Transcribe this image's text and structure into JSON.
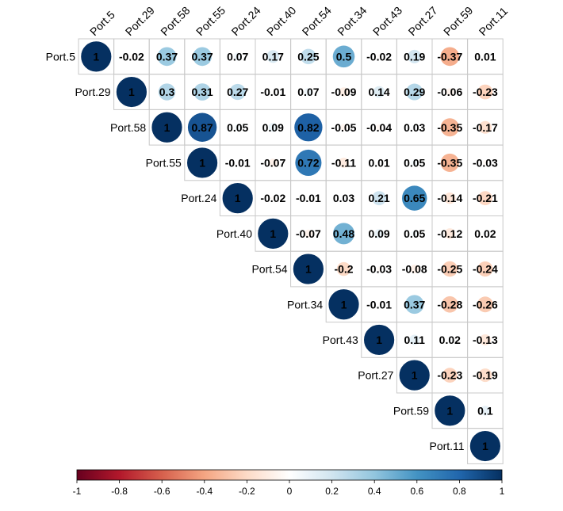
{
  "chart_data": {
    "type": "heatmap",
    "style": "upper-triangle correlation plot with circles",
    "variables": [
      "Port.5",
      "Port.29",
      "Port.58",
      "Port.55",
      "Port.24",
      "Port.40",
      "Port.54",
      "Port.34",
      "Port.43",
      "Port.27",
      "Port.59",
      "Port.11"
    ],
    "matrix_upper": [
      [
        1,
        -0.02,
        0.37,
        0.37,
        0.07,
        0.17,
        0.25,
        0.5,
        -0.02,
        0.19,
        -0.37,
        0.01
      ],
      [
        1,
        0.3,
        0.31,
        0.27,
        -0.01,
        0.07,
        -0.09,
        0.14,
        0.29,
        -0.06,
        -0.23
      ],
      [
        1,
        0.87,
        0.05,
        0.09,
        0.82,
        -0.05,
        -0.04,
        0.03,
        -0.35,
        -0.17
      ],
      [
        1,
        -0.01,
        -0.07,
        0.72,
        -0.11,
        0.01,
        0.05,
        -0.35,
        -0.03
      ],
      [
        1,
        -0.02,
        -0.01,
        0.03,
        0.21,
        0.65,
        -0.14,
        -0.21
      ],
      [
        1,
        -0.07,
        0.48,
        0.09,
        0.05,
        -0.12,
        0.02
      ],
      [
        1,
        -0.2,
        -0.03,
        -0.08,
        -0.25,
        -0.24
      ],
      [
        1,
        -0.01,
        0.37,
        -0.28,
        -0.26
      ],
      [
        1,
        0.11,
        0.02,
        -0.13
      ],
      [
        1,
        -0.23,
        -0.19
      ],
      [
        1,
        0.1
      ],
      [
        1
      ]
    ],
    "colorbar": {
      "ticks": [
        -1,
        -0.8,
        -0.6,
        -0.4,
        -0.2,
        0,
        0.2,
        0.4,
        0.6,
        0.8,
        1
      ],
      "range": [
        -1,
        1
      ],
      "colors": [
        "#67001F",
        "#B2182B",
        "#D6604D",
        "#F4A582",
        "#FDDBC7",
        "#FFFFFF",
        "#D1E5F0",
        "#92C5DE",
        "#4393C3",
        "#2166AC",
        "#053061"
      ]
    }
  }
}
